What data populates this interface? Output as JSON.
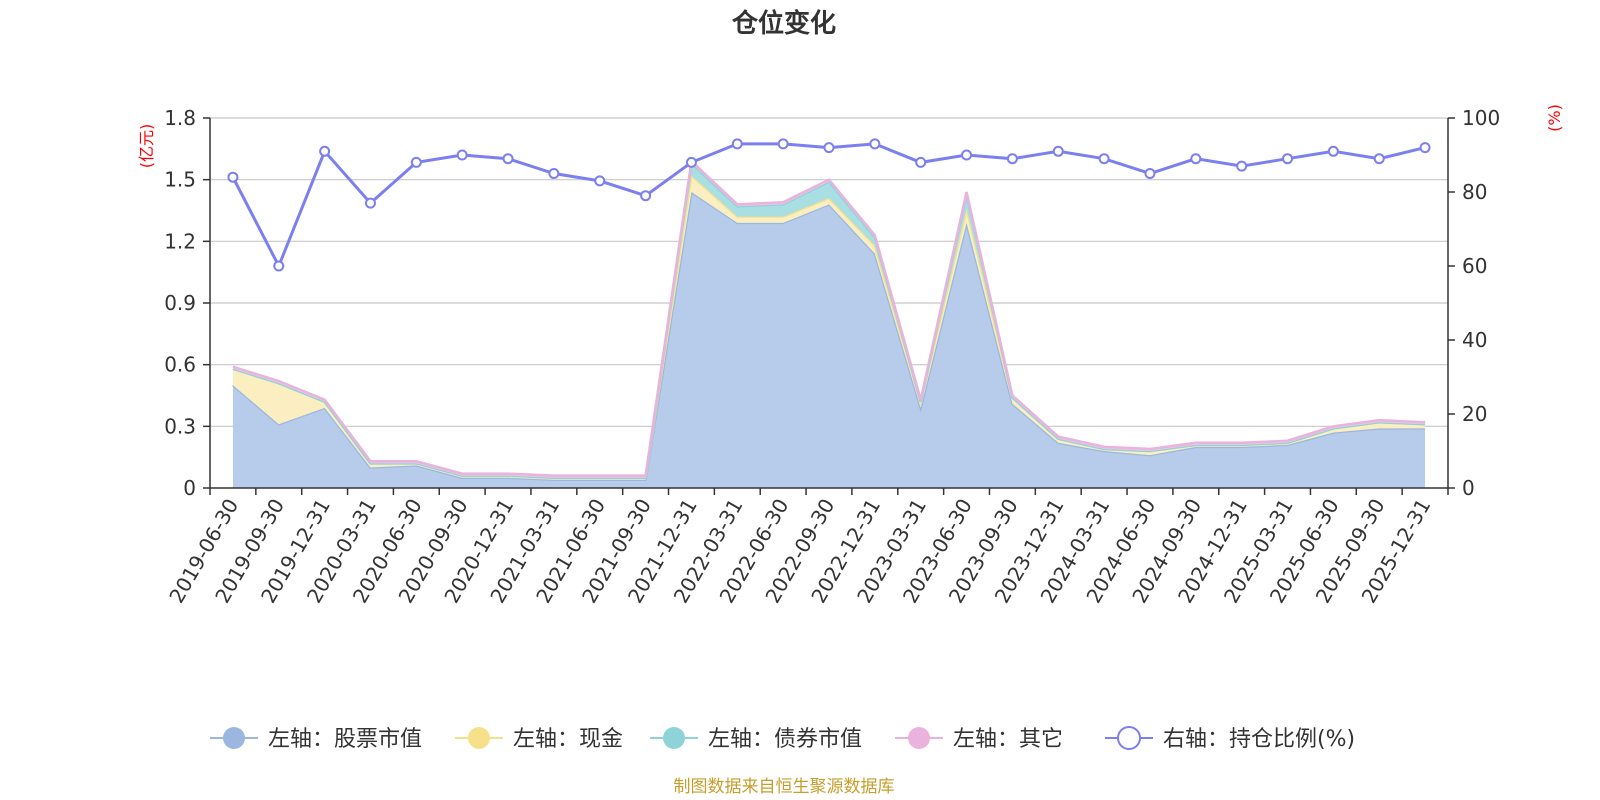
{
  "chart_data": {
    "type": "area",
    "title": "仓位变化",
    "left_axis": {
      "unit": "(亿元)",
      "ylim": [
        0,
        1.8
      ],
      "ticks": [
        "0",
        "0.3",
        "0.6",
        "0.9",
        "1.2",
        "1.5",
        "1.8"
      ]
    },
    "right_axis": {
      "unit": "(%)",
      "ylim": [
        0,
        100
      ],
      "ticks": [
        "0",
        "20",
        "40",
        "60",
        "80",
        "100"
      ]
    },
    "categories": [
      "2019-06-30",
      "2019-09-30",
      "2019-12-31",
      "2020-03-31",
      "2020-06-30",
      "2020-09-30",
      "2020-12-31",
      "2021-03-31",
      "2021-06-30",
      "2021-09-30",
      "2021-12-31",
      "2022-03-31",
      "2022-06-30",
      "2022-09-30",
      "2022-12-31",
      "2023-03-31",
      "2023-06-30",
      "2023-09-30",
      "2023-12-31",
      "2024-03-31",
      "2024-06-30",
      "2024-09-30",
      "2024-12-31",
      "2025-03-31",
      "2025-06-30",
      "2025-09-30",
      "2025-12-31"
    ],
    "series": [
      {
        "name": "左轴：股票市值",
        "axis": "left",
        "stack": true,
        "color": "#9bb7e0",
        "fill": "#b7cbeb",
        "values": [
          0.5,
          0.31,
          0.39,
          0.1,
          0.11,
          0.05,
          0.05,
          0.04,
          0.04,
          0.04,
          1.44,
          1.29,
          1.29,
          1.38,
          1.14,
          0.39,
          1.29,
          0.41,
          0.22,
          0.18,
          0.16,
          0.2,
          0.2,
          0.21,
          0.27,
          0.29,
          0.29
        ]
      },
      {
        "name": "左轴：现金",
        "axis": "left",
        "stack": true,
        "color": "#f7e08a",
        "fill": "#fbeec0",
        "values": [
          0.08,
          0.2,
          0.03,
          0.02,
          0.01,
          0.01,
          0.01,
          0.01,
          0.01,
          0.01,
          0.08,
          0.03,
          0.03,
          0.03,
          0.04,
          0.03,
          0.07,
          0.03,
          0.02,
          0.01,
          0.02,
          0.01,
          0.01,
          0.01,
          0.02,
          0.03,
          0.02
        ]
      },
      {
        "name": "左轴：债券市值",
        "axis": "left",
        "stack": true,
        "color": "#8ed3d8",
        "fill": "#a9dfe2",
        "values": [
          0,
          0,
          0,
          0,
          0,
          0,
          0,
          0,
          0,
          0,
          0.06,
          0.05,
          0.06,
          0.08,
          0.04,
          0,
          0.07,
          0,
          0,
          0,
          0,
          0,
          0,
          0,
          0,
          0,
          0
        ]
      },
      {
        "name": "左轴：其它",
        "axis": "left",
        "stack": true,
        "color": "#e9b3dd",
        "fill": "#f0c6e6",
        "values": [
          0.01,
          0.01,
          0.01,
          0.01,
          0.01,
          0.01,
          0.01,
          0.01,
          0.01,
          0.01,
          0.01,
          0.01,
          0.01,
          0.01,
          0.01,
          0.01,
          0.01,
          0.01,
          0.01,
          0.01,
          0.01,
          0.01,
          0.01,
          0.01,
          0.01,
          0.01,
          0.01
        ]
      },
      {
        "name": "右轴：持仓比例(%)",
        "axis": "right",
        "type": "line",
        "color": "#7b7ff0",
        "values": [
          84,
          60,
          91,
          77,
          88,
          90,
          89,
          85,
          83,
          79,
          88,
          93,
          93,
          92,
          93,
          88,
          90,
          89,
          91,
          89,
          85,
          89,
          87,
          89,
          91,
          89,
          92
        ]
      }
    ],
    "legend": {
      "position": "bottom"
    },
    "grid": true
  },
  "footer": {
    "source": "制图数据来自恒生聚源数据库"
  }
}
